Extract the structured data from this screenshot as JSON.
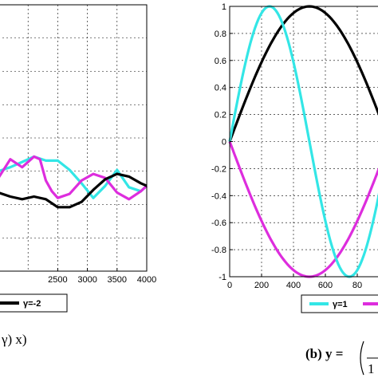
{
  "chart_data": [
    {
      "type": "line",
      "panel": "a",
      "xlim": [
        1500,
        4000
      ],
      "ylim": [
        -1,
        1
      ],
      "xticks": [
        "2500",
        "3000",
        "3500",
        "4000"
      ],
      "grid": true,
      "legend_position": "bottom",
      "legend": [
        {
          "name": "γ=-2",
          "color": "#000000"
        }
      ],
      "caption_fragment": "γ) x)",
      "series": [
        {
          "name": "cyan",
          "color": "#33e6e6",
          "x": [
            1500,
            1700,
            1900,
            2100,
            2300,
            2500,
            2700,
            2900,
            3100,
            3300,
            3500,
            3700,
            3900,
            4000
          ],
          "y": [
            -0.25,
            -0.22,
            -0.18,
            -0.14,
            -0.17,
            -0.17,
            -0.24,
            -0.34,
            -0.45,
            -0.36,
            -0.24,
            -0.37,
            -0.4,
            -0.36
          ]
        },
        {
          "name": "magenta",
          "color": "#dd2ddd",
          "x": [
            1500,
            1700,
            1900,
            2100,
            2200,
            2300,
            2400,
            2500,
            2700,
            2900,
            3100,
            3300,
            3500,
            3700,
            3900,
            4000
          ],
          "y": [
            -0.3,
            -0.16,
            -0.22,
            -0.14,
            -0.16,
            -0.32,
            -0.4,
            -0.45,
            -0.42,
            -0.32,
            -0.27,
            -0.3,
            -0.41,
            -0.46,
            -0.4,
            -0.36
          ]
        },
        {
          "name": "γ=-2",
          "color": "#000000",
          "x": [
            1500,
            1700,
            1900,
            2100,
            2300,
            2500,
            2700,
            2900,
            3100,
            3300,
            3500,
            3700,
            3900,
            4000
          ],
          "y": [
            -0.41,
            -0.44,
            -0.46,
            -0.44,
            -0.46,
            -0.52,
            -0.52,
            -0.48,
            -0.39,
            -0.31,
            -0.27,
            -0.29,
            -0.34,
            -0.36
          ]
        }
      ]
    },
    {
      "type": "line",
      "panel": "b",
      "xlim": [
        0,
        1000
      ],
      "ylim": [
        -1,
        1
      ],
      "xticks": [
        "0",
        "200",
        "400",
        "600",
        "80"
      ],
      "yticks": [
        "1",
        "0.8",
        "0.6",
        "0.4",
        "0.2",
        "0",
        "-0.2",
        "-0.4",
        "-0.6",
        "-0.8",
        "-1"
      ],
      "grid": true,
      "legend_position": "bottom",
      "legend": [
        {
          "name": "γ=1",
          "color": "#33e6e6"
        }
      ],
      "caption_fragment": "(b) y =",
      "series": [
        {
          "name": "γ=1",
          "color": "#33e6e6",
          "function": "sin(2*pi*x/1000)"
        },
        {
          "name": "black",
          "color": "#000000",
          "function": "sin(pi*x/1000)"
        },
        {
          "name": "magenta",
          "color": "#dd2ddd",
          "function": "-sin(pi*x/1000)"
        }
      ]
    }
  ]
}
